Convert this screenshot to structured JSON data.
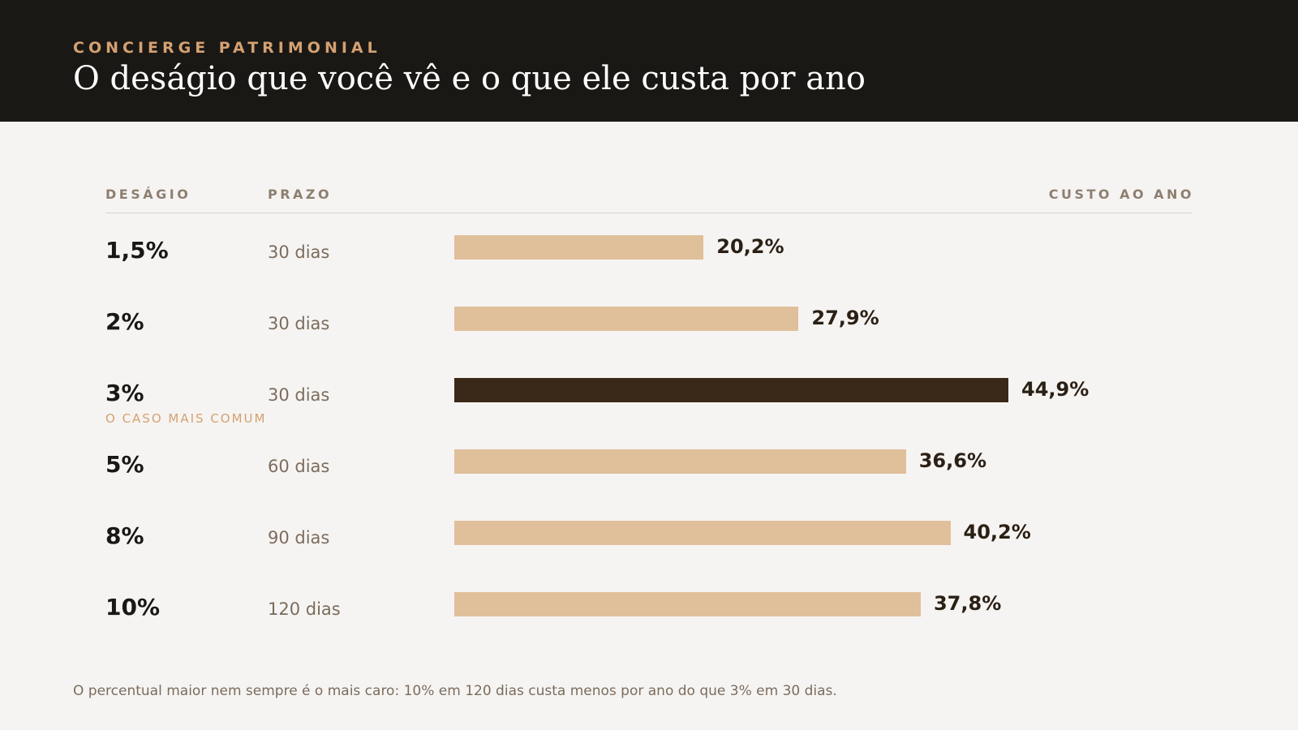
{
  "header": {
    "eyebrow": "CONCIERGE PATRIMONIAL",
    "title": "O deságio que você vê e o que ele custa por ano"
  },
  "columns": {
    "desagio": "DESÁGIO",
    "prazo": "PRAZO",
    "custo": "CUSTO AO ANO"
  },
  "colors": {
    "header_bg": "#1a1815",
    "accent": "#d4a171",
    "bar_default": "#e0bf9b",
    "bar_highlight": "#3a2818"
  },
  "chart_data": {
    "type": "bar",
    "orientation": "horizontal",
    "title": "O deságio que você vê e o que ele custa por ano",
    "xlabel": "CUSTO AO ANO",
    "ylabel": "DESÁGIO",
    "xlim": [
      0,
      60
    ],
    "grid": false,
    "legend": "none",
    "rows": [
      {
        "rate": "1,5%",
        "term": "30 dias",
        "value": 20.2,
        "value_label": "20,2%",
        "highlight": false,
        "note": ""
      },
      {
        "rate": "2%",
        "term": "30 dias",
        "value": 27.9,
        "value_label": "27,9%",
        "highlight": false,
        "note": ""
      },
      {
        "rate": "3%",
        "term": "30 dias",
        "value": 44.9,
        "value_label": "44,9%",
        "highlight": true,
        "note": "O CASO MAIS COMUM"
      },
      {
        "rate": "5%",
        "term": "60 dias",
        "value": 36.6,
        "value_label": "36,6%",
        "highlight": false,
        "note": ""
      },
      {
        "rate": "8%",
        "term": "90 dias",
        "value": 40.2,
        "value_label": "40,2%",
        "highlight": false,
        "note": ""
      },
      {
        "rate": "10%",
        "term": "120 dias",
        "value": 37.8,
        "value_label": "37,8%",
        "highlight": false,
        "note": ""
      }
    ]
  },
  "footnote": "O percentual maior nem sempre é o mais caro: 10% em 120 dias custa menos por ano do que 3% em 30 dias."
}
